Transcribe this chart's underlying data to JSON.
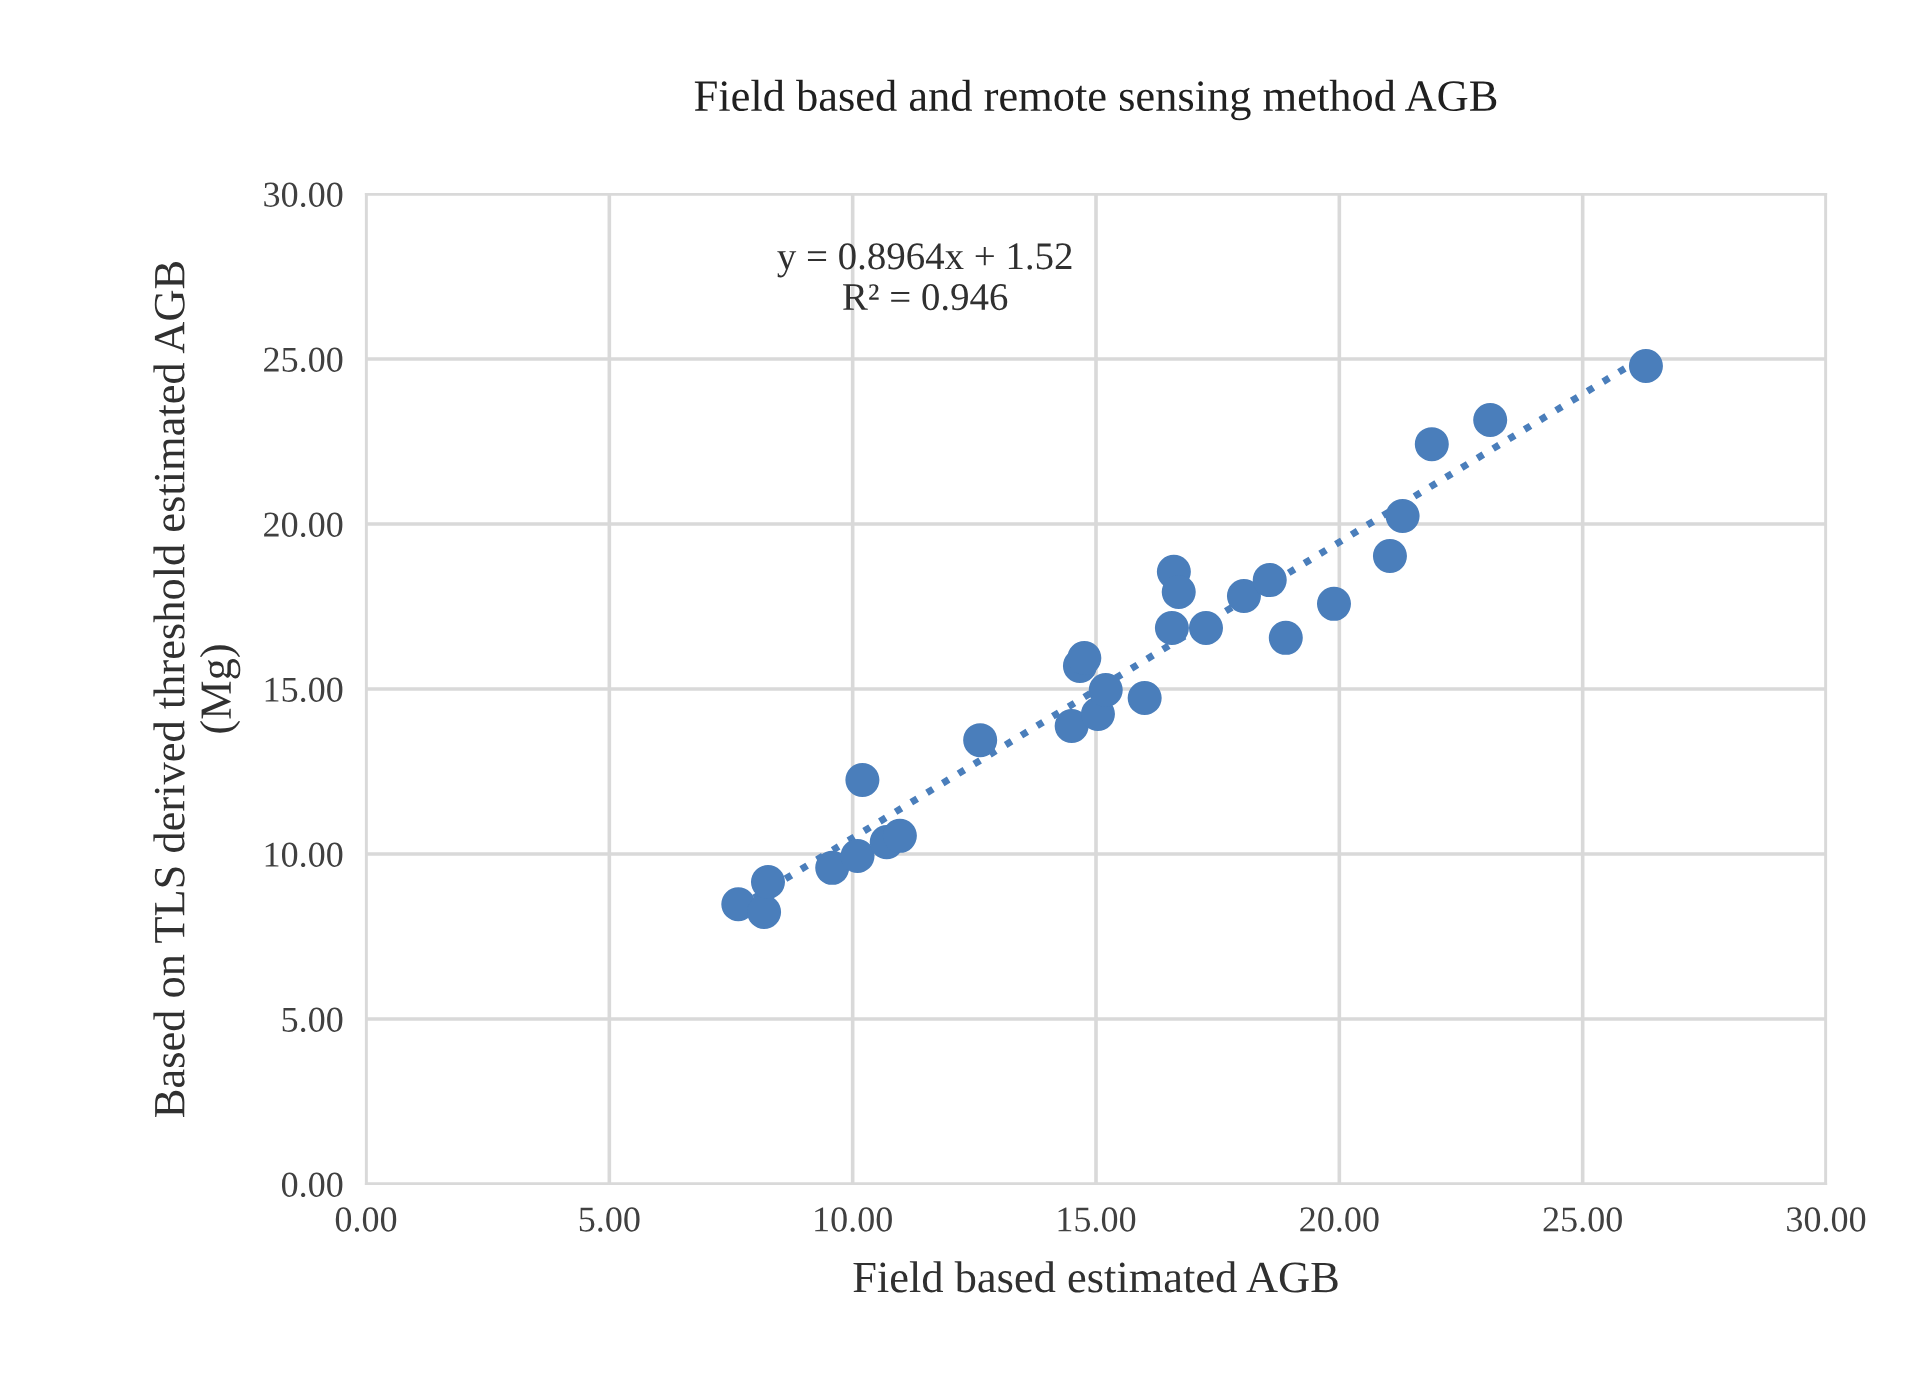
{
  "chart_data": {
    "type": "scatter",
    "title": "Field based and remote sensing method AGB",
    "xlabel": "Field based estimated AGB",
    "ylabel": "Based on TLS derived threshold estimated AGB\n(Mg)",
    "series": [
      {
        "color": "#4a7ebb",
        "marker": "circle",
        "x": [
          7.65,
          8.18,
          8.26,
          9.58,
          10.1,
          10.2,
          10.7,
          10.97,
          12.62,
          14.5,
          14.67,
          14.76,
          15.04,
          15.2,
          16.0,
          16.56,
          16.6,
          16.7,
          17.26,
          18.04,
          18.57,
          18.9,
          19.89,
          21.04,
          21.3,
          21.9,
          23.1,
          26.3
        ],
        "values": [
          8.48,
          8.24,
          9.15,
          9.58,
          9.94,
          12.24,
          10.36,
          10.55,
          13.45,
          13.88,
          15.7,
          15.94,
          14.24,
          14.97,
          14.73,
          16.85,
          18.55,
          17.94,
          16.85,
          17.82,
          18.3,
          16.55,
          17.58,
          19.03,
          20.24,
          22.42,
          23.15,
          24.79
        ]
      },
      {
        "type": "line",
        "color": "#4a7ebb",
        "line_style": "dotted",
        "x": [
          7.65,
          26.3
        ],
        "values": [
          8.38,
          25.1
        ]
      }
    ],
    "annotations": [
      "y = 0.8964x + 1.52\nR² = 0.946"
    ],
    "xlim": [
      0,
      30
    ],
    "ylim": [
      0,
      30
    ],
    "xticks": [
      {
        "value": 0,
        "label": "0.00"
      },
      {
        "value": 5,
        "label": "5.00"
      },
      {
        "value": 10,
        "label": "10.00"
      },
      {
        "value": 15,
        "label": "15.00"
      },
      {
        "value": 20,
        "label": "20.00"
      },
      {
        "value": 25,
        "label": "25.00"
      },
      {
        "value": 30,
        "label": "30.00"
      }
    ],
    "yticks": [
      {
        "value": 0,
        "label": "0.00"
      },
      {
        "value": 5,
        "label": "5.00"
      },
      {
        "value": 10,
        "label": "10.00"
      },
      {
        "value": 15,
        "label": "15.00"
      },
      {
        "value": 20,
        "label": "20.00"
      },
      {
        "value": 25,
        "label": "25.00"
      },
      {
        "value": 30,
        "label": "30.00"
      }
    ],
    "grid": true,
    "legend": false
  }
}
